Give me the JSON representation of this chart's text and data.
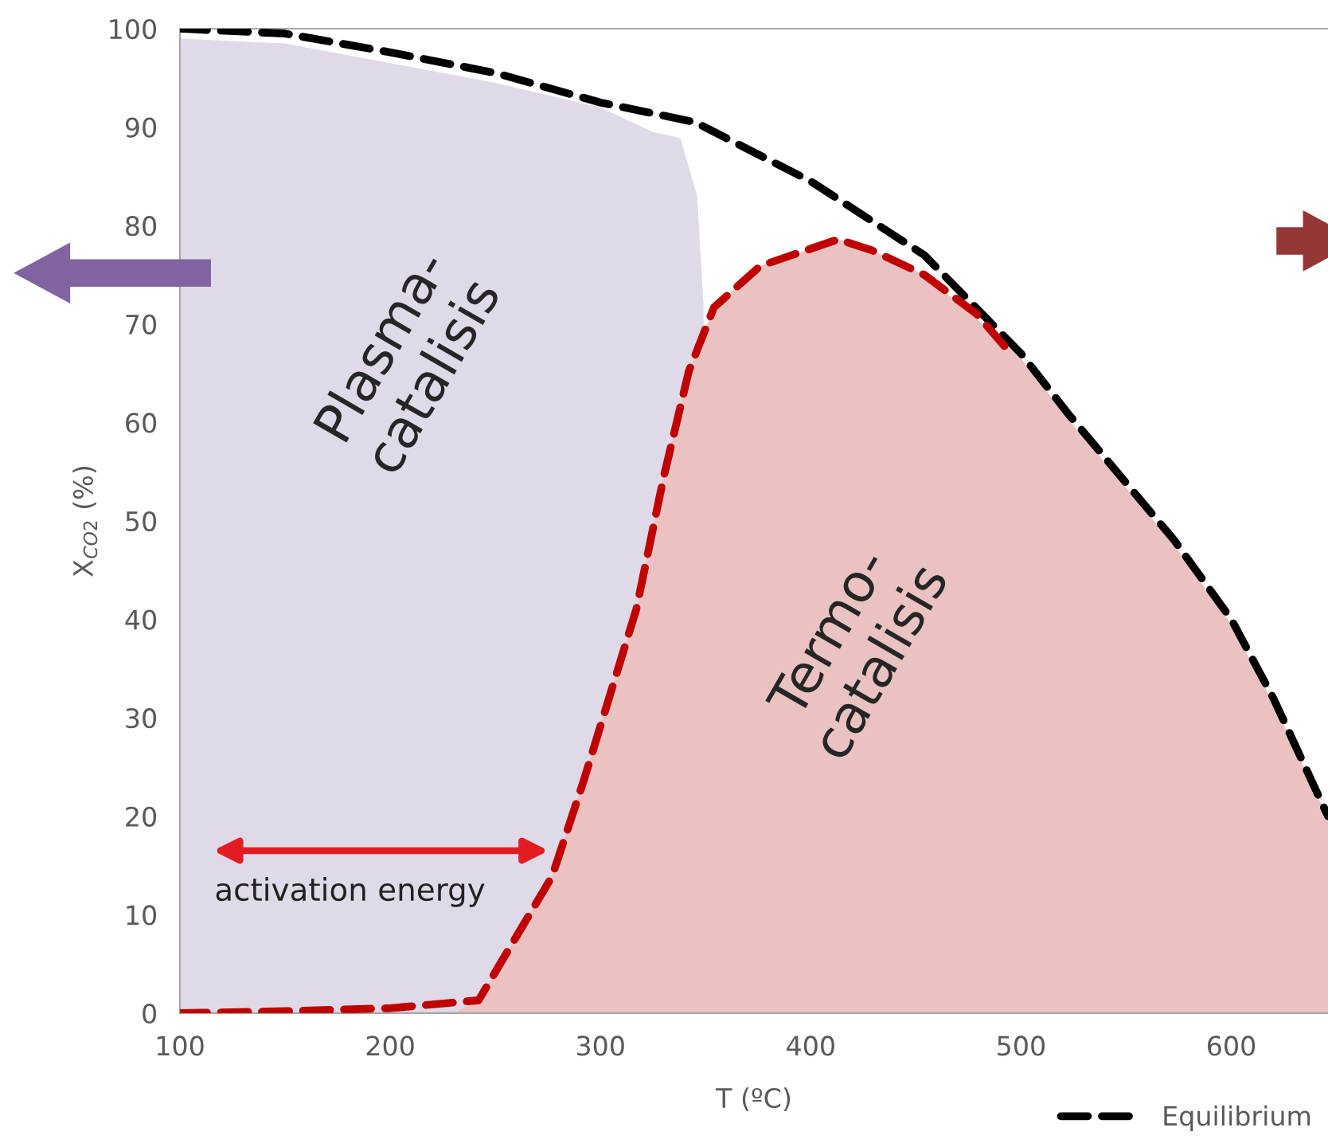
{
  "chart_data": {
    "type": "area",
    "xlabel": "T (ºC)",
    "ylabel": "X$_{CO2}$ (%)",
    "xlim": [
      100,
      646
    ],
    "ylim": [
      0,
      100
    ],
    "xticks": [
      100,
      200,
      300,
      400,
      500,
      600
    ],
    "yticks": [
      0,
      10,
      20,
      30,
      40,
      50,
      60,
      70,
      80,
      90,
      100
    ],
    "grid": false,
    "legend": "bottom right",
    "series": [
      {
        "color": "#e0dae8",
        "x": [
          100,
          150,
          200,
          250,
          300,
          325,
          338,
          346,
          349
        ],
        "values": [
          99,
          98.5,
          96.5,
          94.5,
          92,
          89.5,
          88.9,
          83,
          72
        ]
      },
      {
        "color": "#eac2c2",
        "x": [
          230,
          242,
          277,
          292,
          317,
          330,
          342,
          354,
          376,
          413,
          429,
          454,
          479,
          500,
          522,
          573,
          600,
          620,
          646
        ],
        "values": [
          0,
          1.3,
          13.9,
          23.6,
          41,
          54.4,
          65.2,
          71.7,
          75.9,
          78.6,
          77.5,
          75,
          70.5,
          66.5,
          60.5,
          47.5,
          39.5,
          31.5,
          19.8
        ]
      },
      {
        "type": "line",
        "name": "Equilibrium",
        "color": "#000000",
        "line_style": "dashed",
        "x": [
          100,
          150,
          200,
          250,
          300,
          345,
          400,
          454,
          500,
          522,
          573,
          600,
          620,
          646
        ],
        "values": [
          100,
          99.5,
          97.6,
          95.5,
          92.5,
          90.5,
          84.5,
          77,
          67,
          61,
          48,
          40,
          32,
          20
        ]
      },
      {
        "type": "line",
        "color": "#c00000",
        "line_style": "dashed",
        "x": [
          100,
          150,
          200,
          242,
          277,
          292,
          317,
          330,
          342,
          354,
          376,
          413,
          429,
          454,
          479,
          494
        ],
        "values": [
          0,
          0.2,
          0.5,
          1.3,
          13.9,
          23.6,
          41,
          54.4,
          65.2,
          71.7,
          75.9,
          78.6,
          77.5,
          75,
          71,
          67.3
        ]
      }
    ],
    "annotations": [
      "Plasma-\ncatalisis",
      "Termo-\ncatalisis",
      "activation energy"
    ]
  }
}
